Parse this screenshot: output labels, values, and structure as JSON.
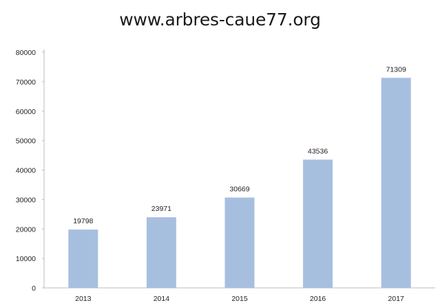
{
  "chart_data": {
    "type": "bar",
    "title": "www.arbres-caue77.org",
    "categories": [
      "2013",
      "2014",
      "2015",
      "2016",
      "2017"
    ],
    "values": [
      19798,
      23971,
      30669,
      43536,
      71309
    ],
    "data_labels": [
      "19798",
      "23971",
      "30669",
      "43536",
      "71309"
    ],
    "yticks": [
      "0",
      "10000",
      "20000",
      "30000",
      "40000",
      "50000",
      "60000",
      "70000",
      "80000"
    ],
    "ylim": [
      0,
      80000
    ],
    "xlabel": "",
    "ylabel": "",
    "grid": false,
    "bar_color": "#a7bfdf",
    "axis_color": "#bbbbbb"
  }
}
